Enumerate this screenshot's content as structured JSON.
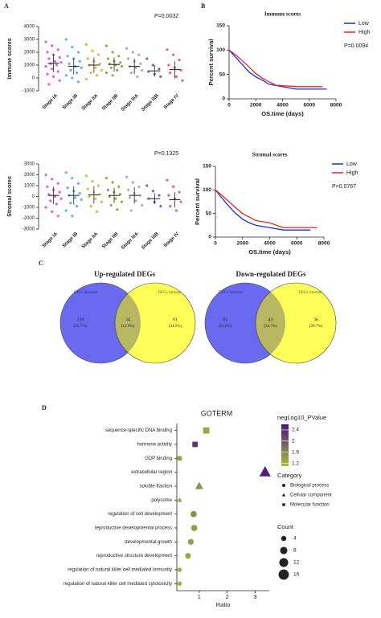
{
  "panel_labels": [
    "A",
    "B",
    "C",
    "D"
  ],
  "chart_data": [
    {
      "type": "strip",
      "ylabel": "Immune scores",
      "annotation": "P=0.0032",
      "categories": [
        "Stage IA",
        "Stage IB",
        "Stage IIA",
        "Stage IIB",
        "Stage IIIA",
        "Stage IIIB",
        "Stage IV"
      ],
      "colors": [
        "#d63bd6",
        "#3aa0e0",
        "#e0a020",
        "#8a8a20",
        "#9a9a9a",
        "#3050c0",
        "#e04060"
      ],
      "ylim": [
        -1000,
        4000
      ],
      "yticks": [
        -1000,
        0,
        1000,
        2000,
        3000,
        4000
      ],
      "points": [
        [
          2800,
          2500,
          2200,
          2000,
          1800,
          1600,
          1500,
          1300,
          1200,
          1100,
          1000,
          900,
          700,
          500,
          300,
          100,
          -200,
          -500
        ],
        [
          3000,
          2400,
          2000,
          1700,
          1500,
          1300,
          1100,
          900,
          800,
          600,
          400,
          200,
          0,
          -300
        ],
        [
          2600,
          2100,
          1800,
          1500,
          1300,
          1100,
          1000,
          800,
          600,
          400,
          200,
          -100
        ],
        [
          2500,
          2000,
          1700,
          1500,
          1300,
          1200,
          1100,
          1000,
          900,
          800,
          600,
          400,
          200
        ],
        [
          2300,
          2000,
          1800,
          1500,
          1300,
          1100,
          900,
          800,
          600,
          400,
          100
        ],
        [
          1500,
          1000,
          700,
          500,
          300,
          100
        ],
        [
          2200,
          1800,
          1400,
          1000,
          800,
          600,
          400,
          100,
          -200
        ]
      ],
      "means": [
        1150,
        900,
        1000,
        1050,
        900,
        550,
        650
      ],
      "sds": [
        700,
        650,
        600,
        550,
        600,
        450,
        650
      ]
    },
    {
      "type": "strip",
      "ylabel": "Stromal scores",
      "annotation": "P=0.1325",
      "categories": [
        "Stage IA",
        "Stage IB",
        "Stage IIA",
        "Stage IIB",
        "Stage IIIA",
        "Stage IIIB",
        "Stage IV"
      ],
      "colors": [
        "#d63bd6",
        "#3aa0e0",
        "#e0a020",
        "#8a8a20",
        "#9a9a9a",
        "#3050c0",
        "#e04060"
      ],
      "ylim": [
        -3000,
        3000
      ],
      "yticks": [
        -3000,
        -2000,
        -1000,
        0,
        1000,
        2000,
        3000
      ],
      "points": [
        [
          2000,
          1600,
          1200,
          900,
          600,
          400,
          200,
          0,
          -200,
          -400,
          -700,
          -1000,
          -1400,
          -1800
        ],
        [
          2200,
          1700,
          1200,
          800,
          500,
          300,
          100,
          -100,
          -300,
          -600,
          -900,
          -1300,
          -1800
        ],
        [
          1900,
          1400,
          1000,
          700,
          400,
          200,
          0,
          -200,
          -500,
          -900,
          -1400
        ],
        [
          1700,
          1300,
          900,
          600,
          400,
          200,
          0,
          -200,
          -500,
          -800,
          -1200
        ],
        [
          1800,
          1300,
          900,
          600,
          300,
          100,
          -100,
          -400,
          -800,
          -1300
        ],
        [
          1000,
          500,
          100,
          -200,
          -500,
          -900
        ],
        [
          1500,
          900,
          400,
          100,
          -200,
          -500,
          -900,
          -1300
        ]
      ],
      "means": [
        100,
        100,
        150,
        100,
        100,
        -200,
        -300
      ],
      "sds": [
        800,
        850,
        800,
        700,
        750,
        500,
        700
      ]
    },
    {
      "type": "km",
      "title": "Immune scores",
      "xlabel": "OS.time (days)",
      "ylabel": "Percent survival",
      "annotation": "P=0.0094",
      "xlim": [
        0,
        8000
      ],
      "xticks": [
        0,
        2000,
        4000,
        6000,
        8000
      ],
      "ylim": [
        0,
        150
      ],
      "yticks": [
        0,
        50,
        100,
        150
      ],
      "legend": "upper right",
      "series": [
        {
          "name": "Low",
          "color": "#1a2fcf",
          "x": [
            0,
            500,
            1000,
            1500,
            2000,
            2500,
            3000,
            4000,
            5000,
            7000,
            7300
          ],
          "y": [
            100,
            85,
            70,
            55,
            45,
            38,
            30,
            25,
            20,
            20,
            20
          ]
        },
        {
          "name": "High",
          "color": "#e02828",
          "x": [
            0,
            500,
            1000,
            1500,
            2000,
            2500,
            3000,
            3500,
            5000,
            7000
          ],
          "y": [
            100,
            90,
            78,
            65,
            52,
            42,
            35,
            28,
            25,
            25
          ]
        }
      ]
    },
    {
      "type": "km",
      "title": "Stromal scores",
      "xlabel": "OS.time (days)",
      "ylabel": "Percent survival",
      "annotation": "P=0.0767",
      "xlim": [
        0,
        8000
      ],
      "xticks": [
        0,
        2000,
        4000,
        6000,
        8000
      ],
      "ylim": [
        0,
        150
      ],
      "yticks": [
        0,
        50,
        100,
        150
      ],
      "legend": "upper right",
      "series": [
        {
          "name": "Low",
          "color": "#1a2fcf",
          "x": [
            0,
            500,
            1000,
            1500,
            2000,
            2500,
            3000,
            4000,
            5000,
            7000
          ],
          "y": [
            100,
            82,
            65,
            50,
            38,
            30,
            25,
            20,
            15,
            15
          ]
        },
        {
          "name": "High",
          "color": "#e02828",
          "x": [
            0,
            500,
            1000,
            1500,
            2000,
            2500,
            3000,
            4000,
            5000,
            7500
          ],
          "y": [
            100,
            88,
            75,
            62,
            50,
            42,
            35,
            30,
            20,
            20
          ]
        }
      ]
    },
    {
      "type": "venn",
      "title": "Up-regulated DEGs",
      "sets": [
        "DEGs Immune",
        "DEGs Stromal"
      ],
      "colors": [
        "#6a6af0",
        "#ffff5a",
        "#b8b862"
      ],
      "values": [
        139,
        34,
        91
      ],
      "percents": [
        {
          "value": 52.7,
          "label": "(52.7%)"
        },
        {
          "value": 12.9,
          "label": "(12.9%)"
        },
        {
          "value": 34.5,
          "label": "(34.5%)"
        }
      ]
    },
    {
      "type": "venn",
      "title": "Down-regulated DEGs",
      "sets": [
        "DEGs Immune",
        "DEGs Stromal"
      ],
      "colors": [
        "#6a6af0",
        "#ffff5a",
        "#b8b862"
      ],
      "values": [
        95,
        43,
        36
      ],
      "percents": [
        {
          "value": 54.6,
          "label": "(54.6%)"
        },
        {
          "value": 24.7,
          "label": "(24.7%)"
        },
        {
          "value": 20.7,
          "label": "(20.7%)"
        }
      ]
    },
    {
      "type": "dot",
      "title": "GOTERM",
      "xlabel": "Ratio",
      "categories": [
        "sequence-specific DNA binding",
        "hormone activity",
        "GDP binding",
        "extracellular region",
        "soluble fraction",
        "polysome",
        "regulation of cell development",
        "reproductive developmental process",
        "developmental growth",
        "reproductive structure development",
        "regulation of natural killer cell mediated immunity",
        "regulation of natural killer cell mediated cytotoxicity"
      ],
      "values": [
        1.25,
        0.85,
        0.3,
        3.35,
        1.0,
        0.3,
        0.8,
        0.82,
        0.7,
        0.6,
        0.3,
        0.3
      ],
      "neglog10": [
        1.3,
        2.3,
        1.4,
        2.5,
        1.5,
        1.4,
        1.5,
        1.4,
        1.4,
        1.3,
        1.2,
        1.2
      ],
      "counts": [
        8,
        6,
        4,
        16,
        8,
        3,
        6,
        6,
        5,
        5,
        3,
        3
      ],
      "groups": [
        "Molecular function",
        "Molecular function",
        "Molecular function",
        "Cellular component",
        "Cellular component",
        "Cellular component",
        "Biological process",
        "Biological process",
        "Biological process",
        "Biological process",
        "Biological process",
        "Biological process"
      ],
      "xlim": [
        0.2,
        3.5
      ],
      "xticks": [
        1,
        2,
        3
      ],
      "color_title": "negLog10_PValue",
      "clim": [
        1.1,
        2.6
      ],
      "colorscale": [
        "#a5c03a",
        "#4a1479"
      ],
      "color_ticks": [
        1.2,
        1.6,
        2.0,
        2.4
      ],
      "category_title": "Category",
      "category_entries": [
        "Biological process",
        "Cellular component",
        "Molecular function"
      ],
      "size_title": "Count",
      "size_entries": [
        4,
        8,
        12,
        16
      ]
    }
  ]
}
